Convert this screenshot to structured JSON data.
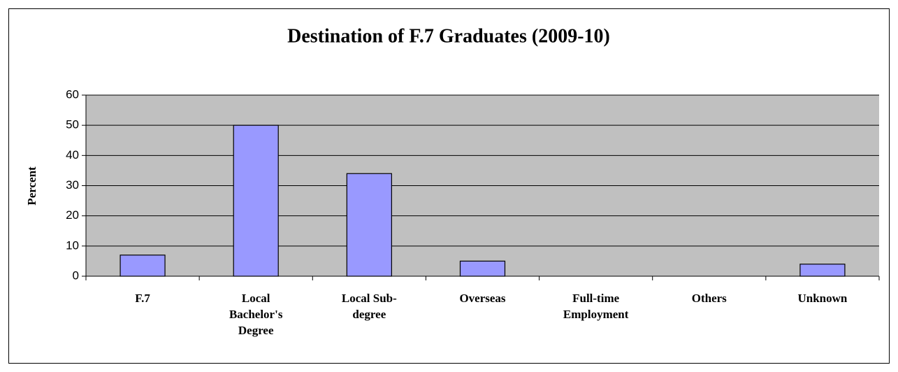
{
  "chart_data": {
    "type": "bar",
    "title": "Destination of F.7 Graduates (2009-10)",
    "y_label": "Percent",
    "categories": [
      "F.7",
      "Local Bachelor's Degree",
      "Local Sub-degree",
      "Overseas",
      "Full-time Employment",
      "Others",
      "Unknown"
    ],
    "values": [
      7,
      50,
      34,
      5,
      0,
      0,
      4
    ],
    "color": "#9999ff",
    "ylim": [
      0,
      60
    ],
    "yticks": [
      0,
      10,
      20,
      30,
      40,
      50,
      60
    ],
    "grid": true
  }
}
